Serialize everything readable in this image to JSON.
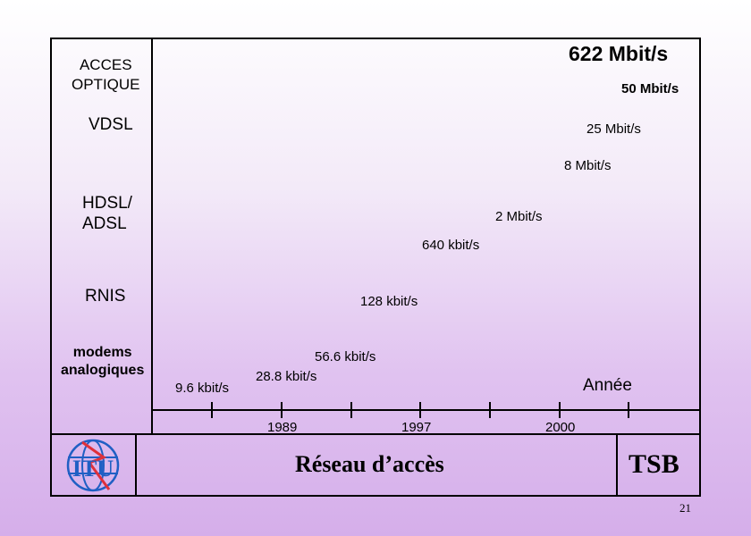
{
  "categories": {
    "optical": "ACCES\nOPTIQUE",
    "vdsl": "VDSL",
    "hdsl": "HDSL/\nADSL",
    "rnis": "RNIS",
    "modems": "modems\nanalogiques"
  },
  "rates": {
    "r622": "622 Mbit/s",
    "r50": "50 Mbit/s",
    "r25": "25 Mbit/s",
    "r8": "8 Mbit/s",
    "r2": "2 Mbit/s",
    "r640": "640 kbit/s",
    "r128": "128 kbit/s",
    "r56": "56.6 kbit/s",
    "r28": "28.8 kbit/s",
    "r9": "9.6 kbit/s"
  },
  "axis": {
    "label": "Année",
    "years": [
      "1989",
      "1997",
      "2000"
    ]
  },
  "footer": {
    "logo_text": "ITU",
    "title": "Réseau d’accès",
    "org": "TSB",
    "page_number": "21"
  },
  "colors": {
    "logo_blue": "#1f5fc4",
    "logo_red": "#e0303a"
  }
}
